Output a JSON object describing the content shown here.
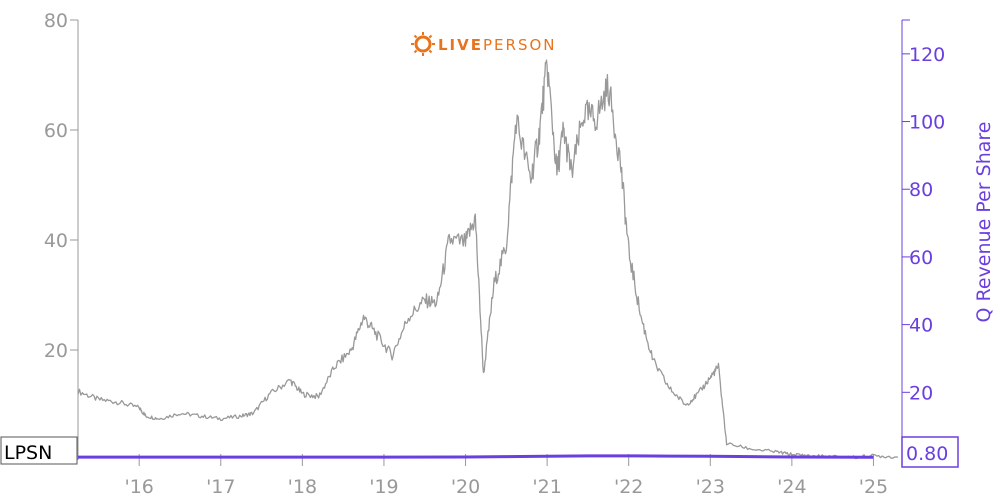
{
  "logo": {
    "text_live": "LIVE",
    "text_person": "PERSON",
    "color_live": "#e8741e",
    "color_person": "#e8741e",
    "icon": "sun-gear-icon"
  },
  "ticker": "LPSN",
  "last_value_label": "0.80",
  "chart_data": {
    "type": "line",
    "title": "",
    "xlabel": "",
    "x_tick_labels": [
      "'16",
      "'17",
      "'18",
      "'19",
      "'20",
      "'21",
      "'22",
      "'23",
      "'24",
      "'25"
    ],
    "xlim": [
      2015.25,
      2025.35
    ],
    "y_left": {
      "label": "",
      "ticks": [
        20,
        40,
        60,
        80
      ],
      "lim": [
        0,
        80
      ]
    },
    "y_right": {
      "label": "Q Revenue Per Share",
      "ticks": [
        20,
        40,
        60,
        80,
        100,
        120
      ],
      "lim": [
        0,
        130
      ]
    },
    "colors": {
      "price": "#999999",
      "revenue": "#6a3fe0",
      "axis_left": "#999999",
      "axis_right": "#6a3fe0"
    },
    "series": [
      {
        "axis": "left",
        "x": [
          2015.25,
          2015.5,
          2015.75,
          2016.0,
          2016.08,
          2016.25,
          2016.5,
          2016.75,
          2017.0,
          2017.25,
          2017.4,
          2017.6,
          2017.85,
          2018.0,
          2018.2,
          2018.4,
          2018.6,
          2018.75,
          2018.9,
          2019.1,
          2019.3,
          2019.5,
          2019.65,
          2019.8,
          2020.0,
          2020.12,
          2020.22,
          2020.35,
          2020.5,
          2020.62,
          2020.8,
          2020.9,
          2021.0,
          2021.12,
          2021.2,
          2021.3,
          2021.45,
          2021.6,
          2021.75,
          2021.9,
          2022.0,
          2022.15,
          2022.3,
          2022.5,
          2022.7,
          2022.85,
          2023.0,
          2023.1,
          2023.2,
          2023.5,
          2023.8,
          2024.0,
          2024.2,
          2024.5,
          2024.8,
          2025.0,
          2025.3
        ],
        "y": [
          12.5,
          11.0,
          10.5,
          9.5,
          8.0,
          7.5,
          8.5,
          8.0,
          7.5,
          8.0,
          8.5,
          12.0,
          14.5,
          12.0,
          11.5,
          17.0,
          20.0,
          26.0,
          23.0,
          19.0,
          26.0,
          29.0,
          28.5,
          40.0,
          39.5,
          44.0,
          15.5,
          32.0,
          39.0,
          62.0,
          51.0,
          59.0,
          72.0,
          52.0,
          60.0,
          52.0,
          63.0,
          62.0,
          68.0,
          54.0,
          38.0,
          26.0,
          18.0,
          13.0,
          10.0,
          12.0,
          15.0,
          17.0,
          3.0,
          2.0,
          1.5,
          1.0,
          0.8,
          0.6,
          0.5,
          0.8,
          0.5
        ]
      },
      {
        "axis": "right",
        "name": "Q Revenue Per Share",
        "x": [
          2015.25,
          2017.0,
          2019.0,
          2020.0,
          2020.5,
          2021.0,
          2021.5,
          2022.0,
          2022.5,
          2023.0,
          2023.5,
          2024.0,
          2024.5,
          2025.0
        ],
        "y": [
          0.85,
          0.85,
          0.85,
          0.9,
          1.0,
          1.1,
          1.2,
          1.2,
          1.15,
          1.1,
          1.0,
          0.9,
          0.85,
          0.8
        ]
      }
    ]
  }
}
